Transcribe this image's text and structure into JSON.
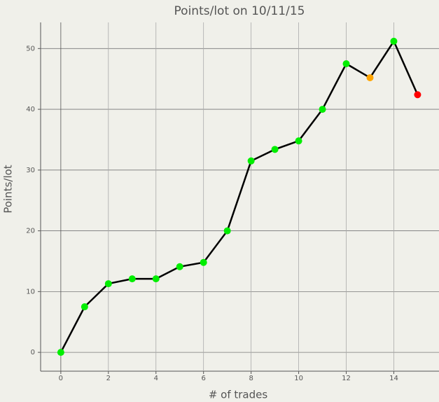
{
  "chart_data": {
    "type": "line",
    "title": "Points/lot on 10/11/15",
    "x_label": "# of trades",
    "y_label": "Points/lot",
    "x": [
      0,
      1,
      2,
      3,
      4,
      5,
      6,
      7,
      8,
      9,
      10,
      11,
      12,
      13,
      14,
      15
    ],
    "series": [
      {
        "name": "Points/lot",
        "color": "#000000",
        "values": [
          0,
          7.5,
          11.3,
          12.1,
          12.1,
          14.1,
          14.8,
          20,
          31.5,
          33.4,
          34.8,
          40,
          47.5,
          45.2,
          51.2,
          42.4
        ],
        "point_colors": [
          "#00ee00",
          "#00ee00",
          "#00ee00",
          "#00ee00",
          "#00ee00",
          "#00ee00",
          "#00ee00",
          "#00ee00",
          "#00ee00",
          "#00ee00",
          "#00ee00",
          "#00ee00",
          "#00ee00",
          "#ffa500",
          "#00ee00",
          "#ff0000"
        ]
      }
    ],
    "xlim": [
      -0.85,
      15.9
    ],
    "ylim": [
      -3.1,
      54.3
    ],
    "xticks": [
      0,
      2,
      4,
      6,
      8,
      10,
      12,
      14
    ],
    "yticks": [
      0,
      10,
      20,
      30,
      40,
      50
    ],
    "grid": true
  }
}
